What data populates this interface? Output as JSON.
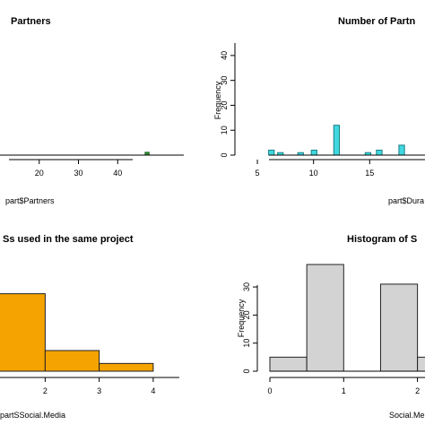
{
  "chart_data": [
    {
      "type": "bar",
      "title": "Partners",
      "xlabel": "part$Partners",
      "ylabel": "",
      "xticks": [
        20,
        30,
        40
      ],
      "xlim": [
        10,
        50
      ],
      "ylim": [
        0,
        40
      ],
      "bars": [
        {
          "x0": 47,
          "x1": 48,
          "value": 1
        }
      ],
      "colors": {
        "bar": "#2e9b2e",
        "border": "#1a5c1a"
      }
    },
    {
      "type": "bar",
      "title": "Number of Partn",
      "xlabel": "part$Dura",
      "ylabel": "Frequency",
      "yticks": [
        0,
        10,
        20,
        30,
        40
      ],
      "xticks": [
        5,
        10,
        15
      ],
      "xlim": [
        3,
        22
      ],
      "ylim": [
        0,
        45
      ],
      "bars": [
        {
          "x0": 6.0,
          "x1": 6.5,
          "value": 2
        },
        {
          "x0": 6.8,
          "x1": 7.3,
          "value": 1
        },
        {
          "x0": 8.6,
          "x1": 9.1,
          "value": 1
        },
        {
          "x0": 9.8,
          "x1": 10.3,
          "value": 2
        },
        {
          "x0": 11.8,
          "x1": 12.3,
          "value": 12
        },
        {
          "x0": 14.6,
          "x1": 15.1,
          "value": 1
        },
        {
          "x0": 15.6,
          "x1": 16.1,
          "value": 2
        },
        {
          "x0": 17.6,
          "x1": 18.1,
          "value": 4
        }
      ],
      "colors": {
        "bar": "#40d8e0",
        "border": "#1a7f86"
      }
    },
    {
      "type": "bar",
      "title": "Ss used in the same project",
      "xlabel": "partSSocial.Media",
      "ylabel": "",
      "xticks": [
        2,
        3,
        4
      ],
      "xlim": [
        0.5,
        4.5
      ],
      "ylim": [
        0,
        50
      ],
      "bars": [
        {
          "x0": 1,
          "x1": 2,
          "value": 30
        },
        {
          "x0": 2,
          "x1": 3,
          "value": 8
        },
        {
          "x0": 3,
          "x1": 4,
          "value": 3
        }
      ],
      "colors": {
        "bar": "#f5a300",
        "border": "#222222"
      }
    },
    {
      "type": "bar",
      "title": "Histogram of S",
      "xlabel": "Social.Me",
      "ylabel": "Frequency",
      "yticks": [
        0,
        10,
        20,
        30
      ],
      "xticks": [
        0,
        1,
        2
      ],
      "xlim": [
        0,
        2.6
      ],
      "ylim": [
        0,
        38
      ],
      "bars": [
        {
          "x0": 0.0,
          "x1": 0.5,
          "value": 5
        },
        {
          "x0": 0.5,
          "x1": 1.0,
          "value": 38
        },
        {
          "x0": 1.0,
          "x1": 1.5,
          "value": 0
        },
        {
          "x0": 1.5,
          "x1": 2.0,
          "value": 31
        },
        {
          "x0": 2.0,
          "x1": 2.5,
          "value": 5
        }
      ],
      "colors": {
        "bar": "#d3d3d3",
        "border": "#222222"
      }
    }
  ]
}
